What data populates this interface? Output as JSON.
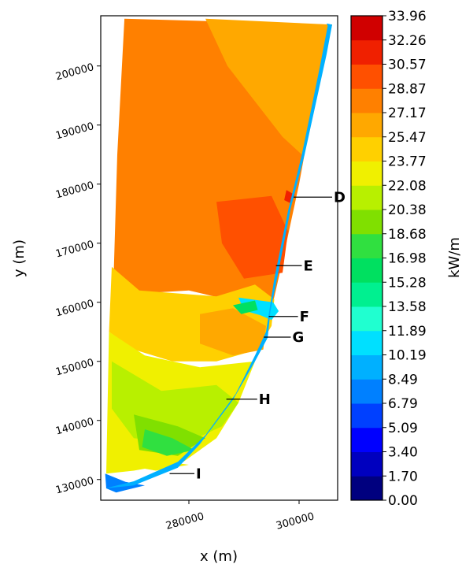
{
  "chart_data": {
    "type": "heatmap",
    "title": "",
    "xlabel": "x (m)",
    "ylabel": "y (m)",
    "xlim": [
      264000,
      307000
    ],
    "ylim": [
      126500,
      208500
    ],
    "x_ticks": [
      {
        "value": 280000,
        "label": "280000"
      },
      {
        "value": 300000,
        "label": "300000"
      }
    ],
    "y_ticks": [
      {
        "value": 130000,
        "label": "130000"
      },
      {
        "value": 140000,
        "label": "140000"
      },
      {
        "value": 150000,
        "label": "150000"
      },
      {
        "value": 160000,
        "label": "160000"
      },
      {
        "value": 170000,
        "label": "170000"
      },
      {
        "value": 180000,
        "label": "180000"
      },
      {
        "value": 190000,
        "label": "190000"
      },
      {
        "value": 200000,
        "label": "200000"
      }
    ],
    "colorbar": {
      "label": "kW/m",
      "min": 0.0,
      "max": 33.96,
      "levels": [
        "0.00",
        "1.70",
        "3.40",
        "5.09",
        "6.79",
        "8.49",
        "10.19",
        "11.89",
        "13.58",
        "15.28",
        "16.98",
        "18.68",
        "20.38",
        "22.08",
        "23.77",
        "25.47",
        "27.17",
        "28.87",
        "30.57",
        "32.26",
        "33.96"
      ],
      "colors": [
        "#00007f",
        "#0000bf",
        "#0000ff",
        "#0040ff",
        "#0080ff",
        "#00b0ff",
        "#00e0ff",
        "#20ffd0",
        "#00f090",
        "#00e060",
        "#30e040",
        "#80e000",
        "#b8f000",
        "#f0f000",
        "#ffd000",
        "#ffa800",
        "#ff8000",
        "#ff5000",
        "#f02000",
        "#d00000"
      ]
    },
    "annotations": [
      {
        "label": "D",
        "x": 299000,
        "y": 177800,
        "text_x": 306000
      },
      {
        "label": "E",
        "x": 295800,
        "y": 166200,
        "text_x": 300500
      },
      {
        "label": "F",
        "x": 294500,
        "y": 157600,
        "text_x": 299800
      },
      {
        "label": "G",
        "x": 293600,
        "y": 154100,
        "text_x": 298500
      },
      {
        "label": "H",
        "x": 286800,
        "y": 143600,
        "text_x": 292400
      },
      {
        "label": "I",
        "x": 276500,
        "y": 131000,
        "text_x": 281000
      }
    ],
    "field_regions": [
      {
        "level": 16,
        "points": [
          [
            268300,
            208000
          ],
          [
            306000,
            207000
          ],
          [
            304000,
            200500
          ],
          [
            300000,
            180000
          ],
          [
            297000,
            167000
          ],
          [
            295400,
            160500
          ],
          [
            289000,
            160000
          ],
          [
            280000,
            162000
          ],
          [
            271000,
            161500
          ],
          [
            266200,
            160000
          ],
          [
            267000,
            185000
          ]
        ]
      },
      {
        "level": 15,
        "points": [
          [
            283000,
            208000
          ],
          [
            306000,
            207000
          ],
          [
            304000,
            200000
          ],
          [
            300500,
            185000
          ],
          [
            297000,
            188000
          ],
          [
            292000,
            194000
          ],
          [
            287000,
            200000
          ]
        ]
      },
      {
        "level": 16,
        "points": [
          [
            288000,
            193000
          ],
          [
            296000,
            186000
          ],
          [
            297800,
            181000
          ],
          [
            293500,
            180000
          ],
          [
            289500,
            183000
          ]
        ]
      },
      {
        "level": 17,
        "points": [
          [
            285000,
            177000
          ],
          [
            295000,
            178000
          ],
          [
            298000,
            172000
          ],
          [
            297000,
            165000
          ],
          [
            290000,
            164000
          ],
          [
            286000,
            170000
          ]
        ]
      },
      {
        "level": 18,
        "points": [
          [
            297700,
            179000
          ],
          [
            299200,
            178200
          ],
          [
            298600,
            176700
          ],
          [
            297300,
            177300
          ]
        ]
      },
      {
        "level": 14,
        "points": [
          [
            266000,
            166000
          ],
          [
            271000,
            162000
          ],
          [
            285000,
            161000
          ],
          [
            292000,
            163000
          ],
          [
            295500,
            160500
          ],
          [
            295000,
            156000
          ],
          [
            292500,
            152000
          ],
          [
            285000,
            150000
          ],
          [
            277000,
            150000
          ],
          [
            270000,
            152000
          ],
          [
            265500,
            155000
          ]
        ]
      },
      {
        "level": 15,
        "points": [
          [
            282000,
            158000
          ],
          [
            288000,
            159000
          ],
          [
            294000,
            156000
          ],
          [
            293500,
            152000
          ],
          [
            288000,
            151000
          ],
          [
            282000,
            153000
          ]
        ]
      },
      {
        "level": 16,
        "points": [
          [
            286000,
            163000
          ],
          [
            288500,
            163800
          ],
          [
            290000,
            162500
          ],
          [
            287200,
            161800
          ]
        ]
      },
      {
        "level": 13,
        "points": [
          [
            265500,
            155000
          ],
          [
            272000,
            151000
          ],
          [
            282000,
            149000
          ],
          [
            292000,
            150000
          ],
          [
            289000,
            143000
          ],
          [
            285000,
            137000
          ],
          [
            279000,
            133000
          ],
          [
            270000,
            131500
          ],
          [
            265000,
            131000
          ]
        ]
      },
      {
        "level": 12,
        "points": [
          [
            266000,
            150000
          ],
          [
            275000,
            145000
          ],
          [
            285000,
            146000
          ],
          [
            289000,
            143000
          ],
          [
            286000,
            139000
          ],
          [
            279000,
            136000
          ],
          [
            270000,
            137000
          ],
          [
            266000,
            142000
          ]
        ]
      },
      {
        "level": 11,
        "points": [
          [
            270000,
            141000
          ],
          [
            278000,
            139000
          ],
          [
            283000,
            137000
          ],
          [
            278000,
            134000
          ],
          [
            271000,
            135000
          ]
        ]
      },
      {
        "level": 10,
        "points": [
          [
            272000,
            138500
          ],
          [
            277000,
            137000
          ],
          [
            281000,
            135000
          ],
          [
            276000,
            134000
          ],
          [
            271500,
            135500
          ]
        ]
      },
      {
        "level": 13,
        "points": [
          [
            270000,
            135000
          ],
          [
            276000,
            133000
          ],
          [
            280000,
            132500
          ],
          [
            274000,
            131500
          ],
          [
            268000,
            132500
          ]
        ]
      },
      {
        "level": 4,
        "points": [
          [
            264800,
            131000
          ],
          [
            268500,
            129600
          ],
          [
            272000,
            129000
          ],
          [
            268500,
            128200
          ],
          [
            266800,
            127800
          ],
          [
            265000,
            128500
          ]
        ]
      },
      {
        "level": 6,
        "points": [
          [
            289000,
            160800
          ],
          [
            295300,
            160000
          ],
          [
            296300,
            158500
          ],
          [
            295000,
            157000
          ],
          [
            293000,
            157800
          ],
          [
            290000,
            158600
          ]
        ]
      },
      {
        "level": 9,
        "points": [
          [
            288000,
            159500
          ],
          [
            292000,
            160300
          ],
          [
            292500,
            158700
          ],
          [
            289500,
            158000
          ]
        ]
      },
      {
        "level": 5,
        "points": [
          [
            305000,
            207200
          ],
          [
            306000,
            207000
          ],
          [
            305000,
            202000
          ],
          [
            301000,
            185000
          ],
          [
            298500,
            176000
          ],
          [
            296000,
            164000
          ],
          [
            294800,
            158500
          ],
          [
            294300,
            154000
          ],
          [
            292000,
            150000
          ],
          [
            288000,
            143500
          ],
          [
            282000,
            136000
          ],
          [
            278000,
            132000
          ],
          [
            270000,
            129000
          ],
          [
            264800,
            128500
          ],
          [
            270000,
            129700
          ],
          [
            278000,
            133000
          ],
          [
            283000,
            137500
          ],
          [
            288500,
            144500
          ],
          [
            292000,
            151000
          ],
          [
            294000,
            155000
          ],
          [
            295500,
            164000
          ],
          [
            298000,
            175500
          ],
          [
            300500,
            185000
          ],
          [
            303800,
            200000
          ],
          [
            305200,
            206800
          ]
        ]
      }
    ]
  }
}
